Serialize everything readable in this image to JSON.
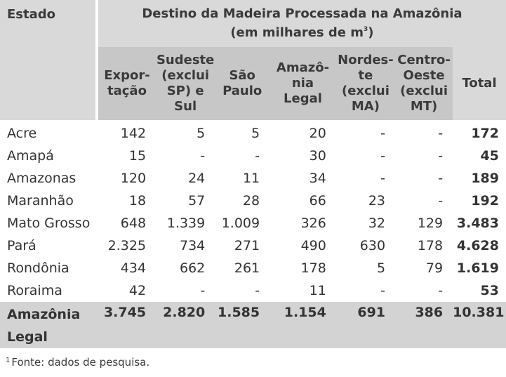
{
  "table": {
    "title_line1": "Destino da Madeira Processada na Amazônia",
    "title_line2_pre": "(em milhares de m",
    "title_line2_sup": "3",
    "title_line2_post": ")",
    "row_header": "Estado",
    "columns": [
      "Expor-\ntação",
      "Sudeste\n(exclui\nSP) e Sul",
      "São\nPaulo",
      "Amazô-\nnia\nLegal",
      "Nordes-\nte\n(exclui\nMA)",
      "Centro-\nOeste\n(exclui\nMT)"
    ],
    "total_header": "Total",
    "rows": [
      {
        "estado": "Acre",
        "values": [
          "142",
          "5",
          "5",
          "20",
          "-",
          "-"
        ],
        "total": "172"
      },
      {
        "estado": "Amapá",
        "values": [
          "15",
          "-",
          "-",
          "30",
          "-",
          "-"
        ],
        "total": "45"
      },
      {
        "estado": "Amazonas",
        "values": [
          "120",
          "24",
          "11",
          "34",
          "-",
          "-"
        ],
        "total": "189"
      },
      {
        "estado": "Maranhão",
        "values": [
          "18",
          "57",
          "28",
          "66",
          "23",
          "-"
        ],
        "total": "192"
      },
      {
        "estado": "Mato Grosso",
        "values": [
          "648",
          "1.339",
          "1.009",
          "326",
          "32",
          "129"
        ],
        "total": "3.483"
      },
      {
        "estado": "Pará",
        "values": [
          "2.325",
          "734",
          "271",
          "490",
          "630",
          "178"
        ],
        "total": "4.628"
      },
      {
        "estado": "Rondônia",
        "values": [
          "434",
          "662",
          "261",
          "178",
          "5",
          "79"
        ],
        "total": "1.619"
      },
      {
        "estado": "Roraima",
        "values": [
          "42",
          "-",
          "-",
          "11",
          "-",
          "-"
        ],
        "total": "53"
      }
    ],
    "summary": {
      "estado_line1": "Amazônia",
      "estado_line2": "Legal",
      "values": [
        "3.745",
        "2.820",
        "1.585",
        "1.154",
        "691",
        "386"
      ],
      "total": "10.381"
    }
  },
  "footnote": {
    "marker": "1",
    "text": "Fonte: dados de pesquisa."
  }
}
